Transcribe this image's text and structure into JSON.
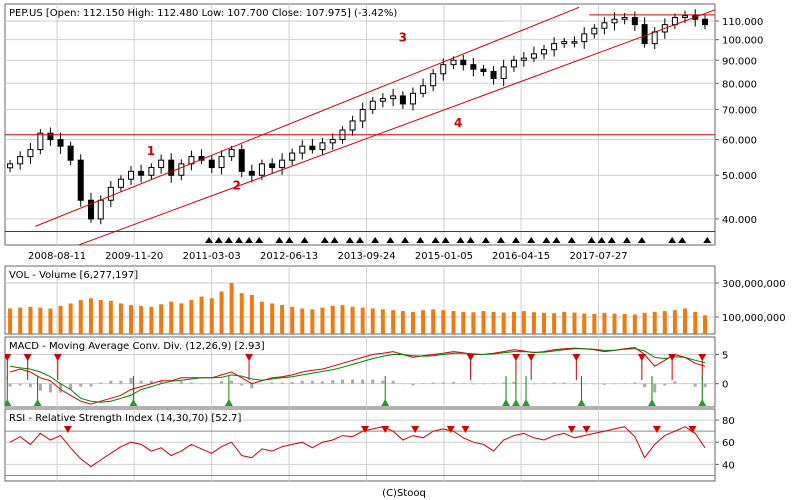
{
  "chart_data": [
    {
      "panel": "price",
      "type": "candlestick",
      "header": "PEP.US [Open: 112.150  High: 112.480  Low: 107.700  Close: 107.975]  (-3.42%)",
      "ticker": "PEP.US",
      "ohlc": {
        "open": 112.15,
        "high": 112.48,
        "low": 107.7,
        "close": 107.975,
        "change_pct": -3.42
      },
      "y_scale": "log",
      "y_range": [
        35,
        120
      ],
      "y_ticks": [
        40,
        50,
        60,
        70,
        80,
        90,
        100,
        110
      ],
      "y_tick_labels": [
        "40.000",
        "50.000",
        "60.000",
        "70.000",
        "80.000",
        "90.000",
        "100.000",
        "110.000"
      ],
      "x_range": [
        "2007-10-01",
        "2019-07-01"
      ],
      "x_ticks": [
        "2008-08-11",
        "2009-11-20",
        "2011-03-03",
        "2012-06-13",
        "2013-09-24",
        "2015-01-05",
        "2016-04-15",
        "2017-07-27"
      ],
      "series": [
        {
          "x": [
            "2007-10",
            "2007-12",
            "2008-02",
            "2008-04",
            "2008-06",
            "2008-08",
            "2008-10",
            "2008-12",
            "2009-02",
            "2009-04",
            "2009-06",
            "2009-08",
            "2009-10",
            "2009-12",
            "2010-02",
            "2010-04",
            "2010-06",
            "2010-08",
            "2010-10",
            "2010-12",
            "2011-02",
            "2011-04",
            "2011-06",
            "2011-08",
            "2011-10",
            "2011-12",
            "2012-02",
            "2012-04",
            "2012-06",
            "2012-08",
            "2012-10",
            "2012-12",
            "2013-02",
            "2013-04",
            "2013-06",
            "2013-08",
            "2013-10",
            "2013-12",
            "2014-02",
            "2014-04",
            "2014-06",
            "2014-08",
            "2014-10",
            "2014-12",
            "2015-02",
            "2015-04",
            "2015-06",
            "2015-08",
            "2015-10",
            "2015-12",
            "2016-02",
            "2016-04",
            "2016-06",
            "2016-08",
            "2016-10",
            "2016-12",
            "2017-02",
            "2017-04",
            "2017-06",
            "2017-08",
            "2017-10",
            "2017-12",
            "2018-02",
            "2018-04",
            "2018-06",
            "2018-08",
            "2018-10",
            "2018-12",
            "2019-02",
            "2019-04"
          ],
          "close": [
            53,
            55,
            57,
            62,
            60,
            58,
            54,
            44,
            40,
            44,
            47,
            49,
            51,
            50,
            52,
            54,
            50,
            53,
            55,
            54,
            52,
            55,
            57,
            51,
            50,
            53,
            52,
            54,
            56,
            58,
            57,
            59,
            60,
            63,
            66,
            70,
            73,
            74,
            75,
            72,
            76,
            79,
            84,
            88,
            90,
            88,
            86,
            85,
            82,
            87,
            90,
            91,
            93,
            95,
            98,
            99,
            99,
            103,
            106,
            109,
            111,
            112,
            108,
            98,
            104,
            108,
            112,
            113,
            111,
            108
          ]
        }
      ],
      "reference_lines": [
        61.5,
        37.5
      ],
      "channel_lines": [
        {
          "from": [
            "2008-04-01",
            38.5
          ],
          "to": [
            "2017-04-01",
            118
          ]
        },
        {
          "from": [
            "2008-08-01",
            33.5
          ],
          "to": [
            "2019-07-01",
            116.5
          ]
        }
      ],
      "resistance_line": {
        "value": 113.5,
        "from": "2017-06-01",
        "to": "2019-07-01"
      },
      "annotations": [
        {
          "text": "1",
          "x": "2010-03-01",
          "y": 55.5
        },
        {
          "text": "2",
          "x": "2011-08-01",
          "y": 46.5
        },
        {
          "text": "3",
          "x": "2014-05-01",
          "y": 99
        },
        {
          "text": "4",
          "x": "2015-04-01",
          "y": 64
        }
      ],
      "signal_markers": [
        "2011-02",
        "2011-04",
        "2011-06",
        "2011-08",
        "2011-10",
        "2011-12",
        "2012-04",
        "2012-06",
        "2012-09",
        "2013-01",
        "2013-03",
        "2013-06",
        "2013-08",
        "2013-11",
        "2014-02",
        "2014-05",
        "2014-08",
        "2014-11",
        "2015-01",
        "2015-04",
        "2015-06",
        "2015-09",
        "2015-12",
        "2016-03",
        "2016-06",
        "2016-09",
        "2016-11",
        "2017-02",
        "2017-06",
        "2017-08",
        "2017-10",
        "2018-01",
        "2018-04",
        "2018-10",
        "2018-12",
        "2019-05"
      ]
    },
    {
      "panel": "volume",
      "type": "bar",
      "header": "VOL - Volume [6,277,197]",
      "y_ticks": [
        100000000,
        300000000
      ],
      "y_tick_labels": [
        "100,000,000",
        "300,000,000"
      ],
      "y_range": [
        0,
        400000000
      ],
      "values": [
        150,
        155,
        160,
        155,
        150,
        165,
        180,
        200,
        210,
        200,
        195,
        180,
        170,
        165,
        160,
        175,
        190,
        180,
        200,
        220,
        210,
        250,
        300,
        240,
        230,
        190,
        180,
        170,
        160,
        150,
        145,
        155,
        165,
        170,
        160,
        155,
        150,
        145,
        140,
        135,
        130,
        140,
        145,
        140,
        135,
        130,
        128,
        135,
        130,
        126,
        130,
        135,
        128,
        125,
        122,
        130,
        126,
        120,
        118,
        125,
        120,
        118,
        115,
        125,
        130,
        135,
        140,
        150,
        130,
        110
      ],
      "value_scale": 1000000
    },
    {
      "panel": "macd",
      "type": "line",
      "header": "MACD - Moving Average Conv. Div. (12,26,9) [2.93]",
      "y_ticks": [
        0,
        5
      ],
      "y_tick_labels": [
        "0",
        "5"
      ],
      "y_range": [
        -4,
        8
      ],
      "series": [
        {
          "values": [
            2,
            2.5,
            2,
            1,
            0.5,
            -1,
            -2,
            -3,
            -3.5,
            -3,
            -2.5,
            -2,
            -1,
            -0.5,
            0,
            0.5,
            0.5,
            1,
            1,
            1,
            1,
            1.5,
            2,
            1,
            0,
            0.5,
            1,
            1.2,
            1.5,
            2,
            2.3,
            2.5,
            3,
            3.5,
            4,
            4.5,
            5,
            5.2,
            5.5,
            5,
            4.5,
            4.8,
            5,
            5.2,
            5.5,
            5.3,
            5,
            5,
            5.2,
            5.5,
            5.8,
            5.6,
            5.3,
            5.5,
            5.8,
            6,
            6.1,
            6,
            5.8,
            5.5,
            5.7,
            6,
            6.2,
            5,
            3,
            4,
            5,
            4.5,
            3.5,
            3
          ]
        },
        {
          "values": [
            3,
            2.7,
            2.5,
            2,
            1.2,
            0,
            -1,
            -2.5,
            -3,
            -3.2,
            -3,
            -2.5,
            -2,
            -1,
            -0.5,
            0,
            0.4,
            0.6,
            0.8,
            1,
            1,
            1.1,
            1.5,
            1.3,
            0.8,
            0.6,
            0.8,
            1,
            1.2,
            1.5,
            1.8,
            2.1,
            2.4,
            2.8,
            3.3,
            3.8,
            4.3,
            4.7,
            5,
            5,
            4.8,
            4.7,
            4.8,
            5,
            5.2,
            5.2,
            5.1,
            5,
            5.1,
            5.3,
            5.5,
            5.5,
            5.4,
            5.4,
            5.6,
            5.8,
            6,
            6,
            5.9,
            5.7,
            5.7,
            5.9,
            6,
            5.6,
            4.5,
            4.3,
            4.6,
            4.5,
            4,
            3.6
          ]
        }
      ],
      "histogram": [
        -0.5,
        -0.3,
        -0.6,
        -1.2,
        -1.5,
        -1.5,
        -1,
        -0.5,
        -0.5,
        0.2,
        0.5,
        0.5,
        1,
        0.5,
        0.5,
        0.5,
        0.1,
        0.4,
        0.2,
        0,
        0,
        0.4,
        0.5,
        -0.3,
        -0.8,
        -0.1,
        0.2,
        0.2,
        0.3,
        0.5,
        0.5,
        0.4,
        0.6,
        0.7,
        0.7,
        0.7,
        0.7,
        0.5,
        0.5,
        0,
        -0.3,
        0.1,
        0.2,
        0.2,
        0.3,
        0.1,
        -0.1,
        0,
        0.1,
        0.2,
        0.3,
        0.1,
        -0.1,
        0.1,
        0.2,
        0.2,
        0.1,
        0,
        -0.1,
        -0.2,
        0,
        0.1,
        0.2,
        -0.6,
        -1.5,
        -0.3,
        0.4,
        0,
        -0.5,
        -0.6
      ],
      "sell_markers": [
        "2007-10",
        "2008-02",
        "2008-08",
        "2011-10",
        "2015-06",
        "2016-03",
        "2016-06",
        "2017-03",
        "2018-04",
        "2018-10",
        "2019-04"
      ],
      "buy_markers": [
        "2007-10",
        "2008-04",
        "2009-11",
        "2011-06",
        "2014-01",
        "2016-01",
        "2016-03",
        "2016-05",
        "2017-04",
        "2018-06",
        "2019-04"
      ]
    },
    {
      "panel": "rsi",
      "type": "line",
      "header": "RSI - Relative Strength Index (14,30,70) [52.7]",
      "y_ticks": [
        40,
        60,
        80
      ],
      "y_tick_labels": [
        "40",
        "60",
        "80"
      ],
      "y_range": [
        25,
        90
      ],
      "levels": [
        30,
        70
      ],
      "series": [
        {
          "values": [
            60,
            65,
            58,
            68,
            62,
            66,
            55,
            45,
            38,
            44,
            50,
            56,
            60,
            58,
            52,
            55,
            48,
            52,
            58,
            54,
            50,
            56,
            60,
            48,
            46,
            54,
            52,
            56,
            58,
            60,
            55,
            60,
            62,
            66,
            65,
            70,
            72,
            74,
            70,
            62,
            66,
            64,
            70,
            72,
            70,
            64,
            60,
            58,
            52,
            62,
            66,
            68,
            64,
            62,
            66,
            68,
            64,
            66,
            68,
            70,
            72,
            74,
            65,
            46,
            58,
            66,
            70,
            74,
            68,
            55
          ]
        }
      ],
      "overbought_markers": [
        "2008-10",
        "2013-09",
        "2014-01",
        "2014-07",
        "2015-02",
        "2015-05",
        "2017-02",
        "2017-05",
        "2018-07",
        "2019-02"
      ]
    }
  ],
  "footer": "(C)Stooq"
}
